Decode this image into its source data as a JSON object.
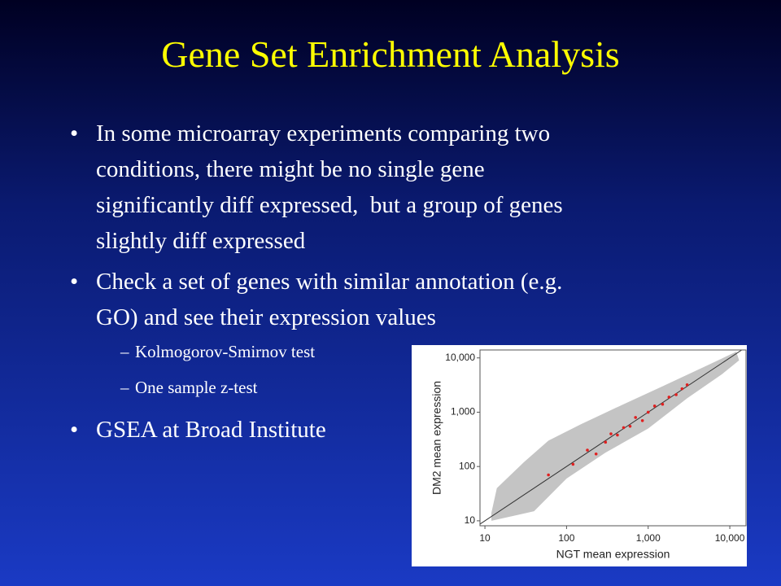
{
  "slide": {
    "title": "Gene Set Enrichment Analysis",
    "bullets": [
      {
        "lines": [
          "In some microarray experiments comparing two",
          "conditions, there might be no single gene",
          "significantly diff expressed,  but a group of genes",
          "slightly diff expressed"
        ]
      },
      {
        "lines": [
          "Check a set of genes with similar annotation (e.g.",
          "GO) and see their expression values"
        ],
        "sub": [
          "Kolmogorov-Smirnov test",
          "One sample z-test"
        ]
      },
      {
        "lines": [
          "GSEA at Broad Institute"
        ]
      }
    ]
  },
  "chart_data": {
    "type": "scatter",
    "x_label": "NGT mean expression",
    "y_label": "DM2 mean expression",
    "log_x": true,
    "log_y": true,
    "xlim": [
      8.7,
      15800
    ],
    "ylim": [
      8.1,
      14000
    ],
    "xticks": [
      10,
      100,
      {
        "value": 1000,
        "label": "1,000"
      },
      {
        "value": 10000,
        "label": "10,000"
      }
    ],
    "yticks": [
      10,
      100,
      {
        "value": 1000,
        "label": "1,000"
      },
      {
        "value": 10000,
        "label": "10,000"
      }
    ],
    "series": [
      {
        "color": "#e02020",
        "x": [
          60,
          120,
          180,
          230,
          300,
          350,
          420,
          500,
          600,
          700,
          850,
          1000,
          1200,
          1500,
          1800,
          2200,
          2600,
          3000
        ],
        "y": [
          70,
          110,
          200,
          170,
          280,
          400,
          380,
          520,
          550,
          800,
          700,
          1000,
          1300,
          1400,
          1900,
          2100,
          2700,
          3200
        ]
      }
    ]
  }
}
